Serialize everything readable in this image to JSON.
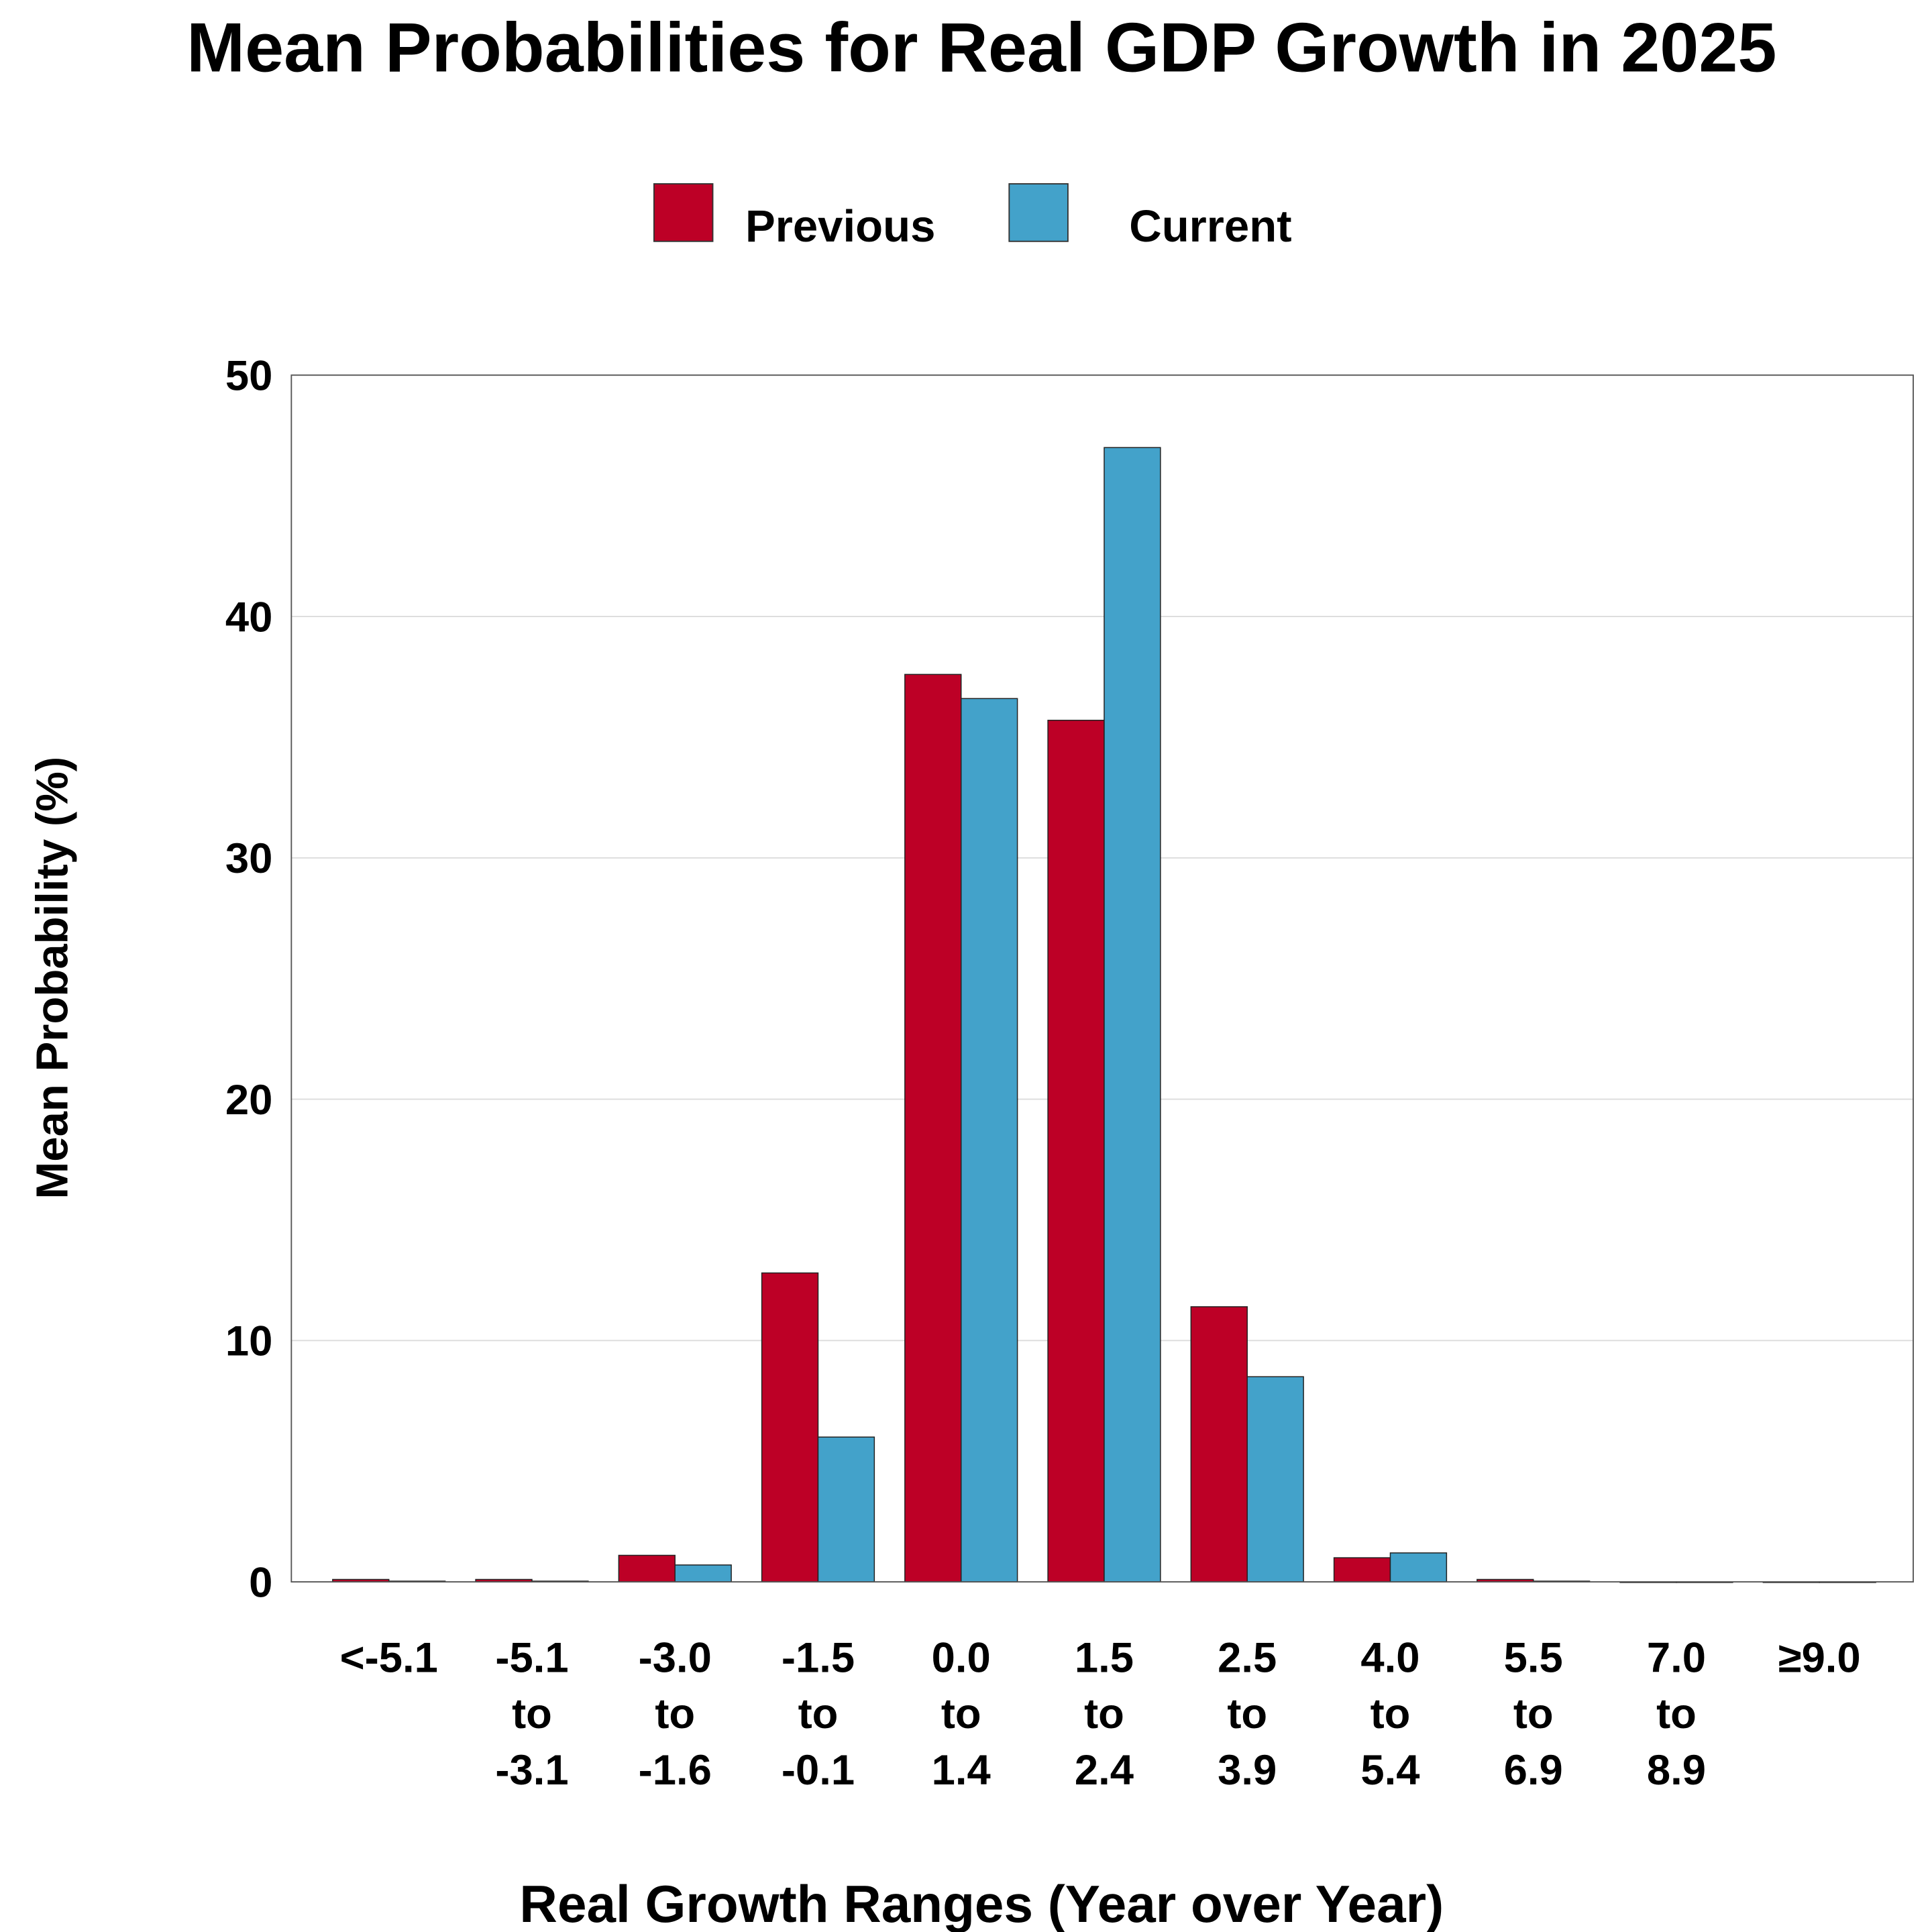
{
  "chart_data": {
    "type": "bar",
    "title": "Mean Probabilities for Real GDP Growth in 2025",
    "xlabel": "Real Growth Ranges (Year over Year)",
    "ylabel": "Mean Probability (%)",
    "ylim": [
      0,
      50
    ],
    "yticks": [
      "0",
      "10",
      "20",
      "30",
      "40",
      "50"
    ],
    "grid": true,
    "legend_position": "top-center",
    "categories": [
      [
        "<-5.1"
      ],
      [
        "-5.1",
        "to",
        "-3.1"
      ],
      [
        "-3.0",
        "to",
        "-1.6"
      ],
      [
        "-1.5",
        "to",
        "-0.1"
      ],
      [
        "0.0",
        "to",
        "1.4"
      ],
      [
        "1.5",
        "to",
        "2.4"
      ],
      [
        "2.5",
        "to",
        "3.9"
      ],
      [
        "4.0",
        "to",
        "5.4"
      ],
      [
        "5.5",
        "to",
        "6.9"
      ],
      [
        "7.0",
        "to",
        "8.9"
      ],
      [
        "≥9.0"
      ]
    ],
    "series": [
      {
        "name": "Previous",
        "color": "#BD0026",
        "values": [
          0.1,
          0.1,
          1.1,
          12.8,
          37.6,
          35.7,
          11.4,
          1.0,
          0.1,
          0.0,
          0.0
        ]
      },
      {
        "name": "Current",
        "color": "#43A2CA",
        "values": [
          0.03,
          0.03,
          0.7,
          6.0,
          36.6,
          47.0,
          8.5,
          1.2,
          0.03,
          0.0,
          0.0
        ]
      }
    ]
  }
}
